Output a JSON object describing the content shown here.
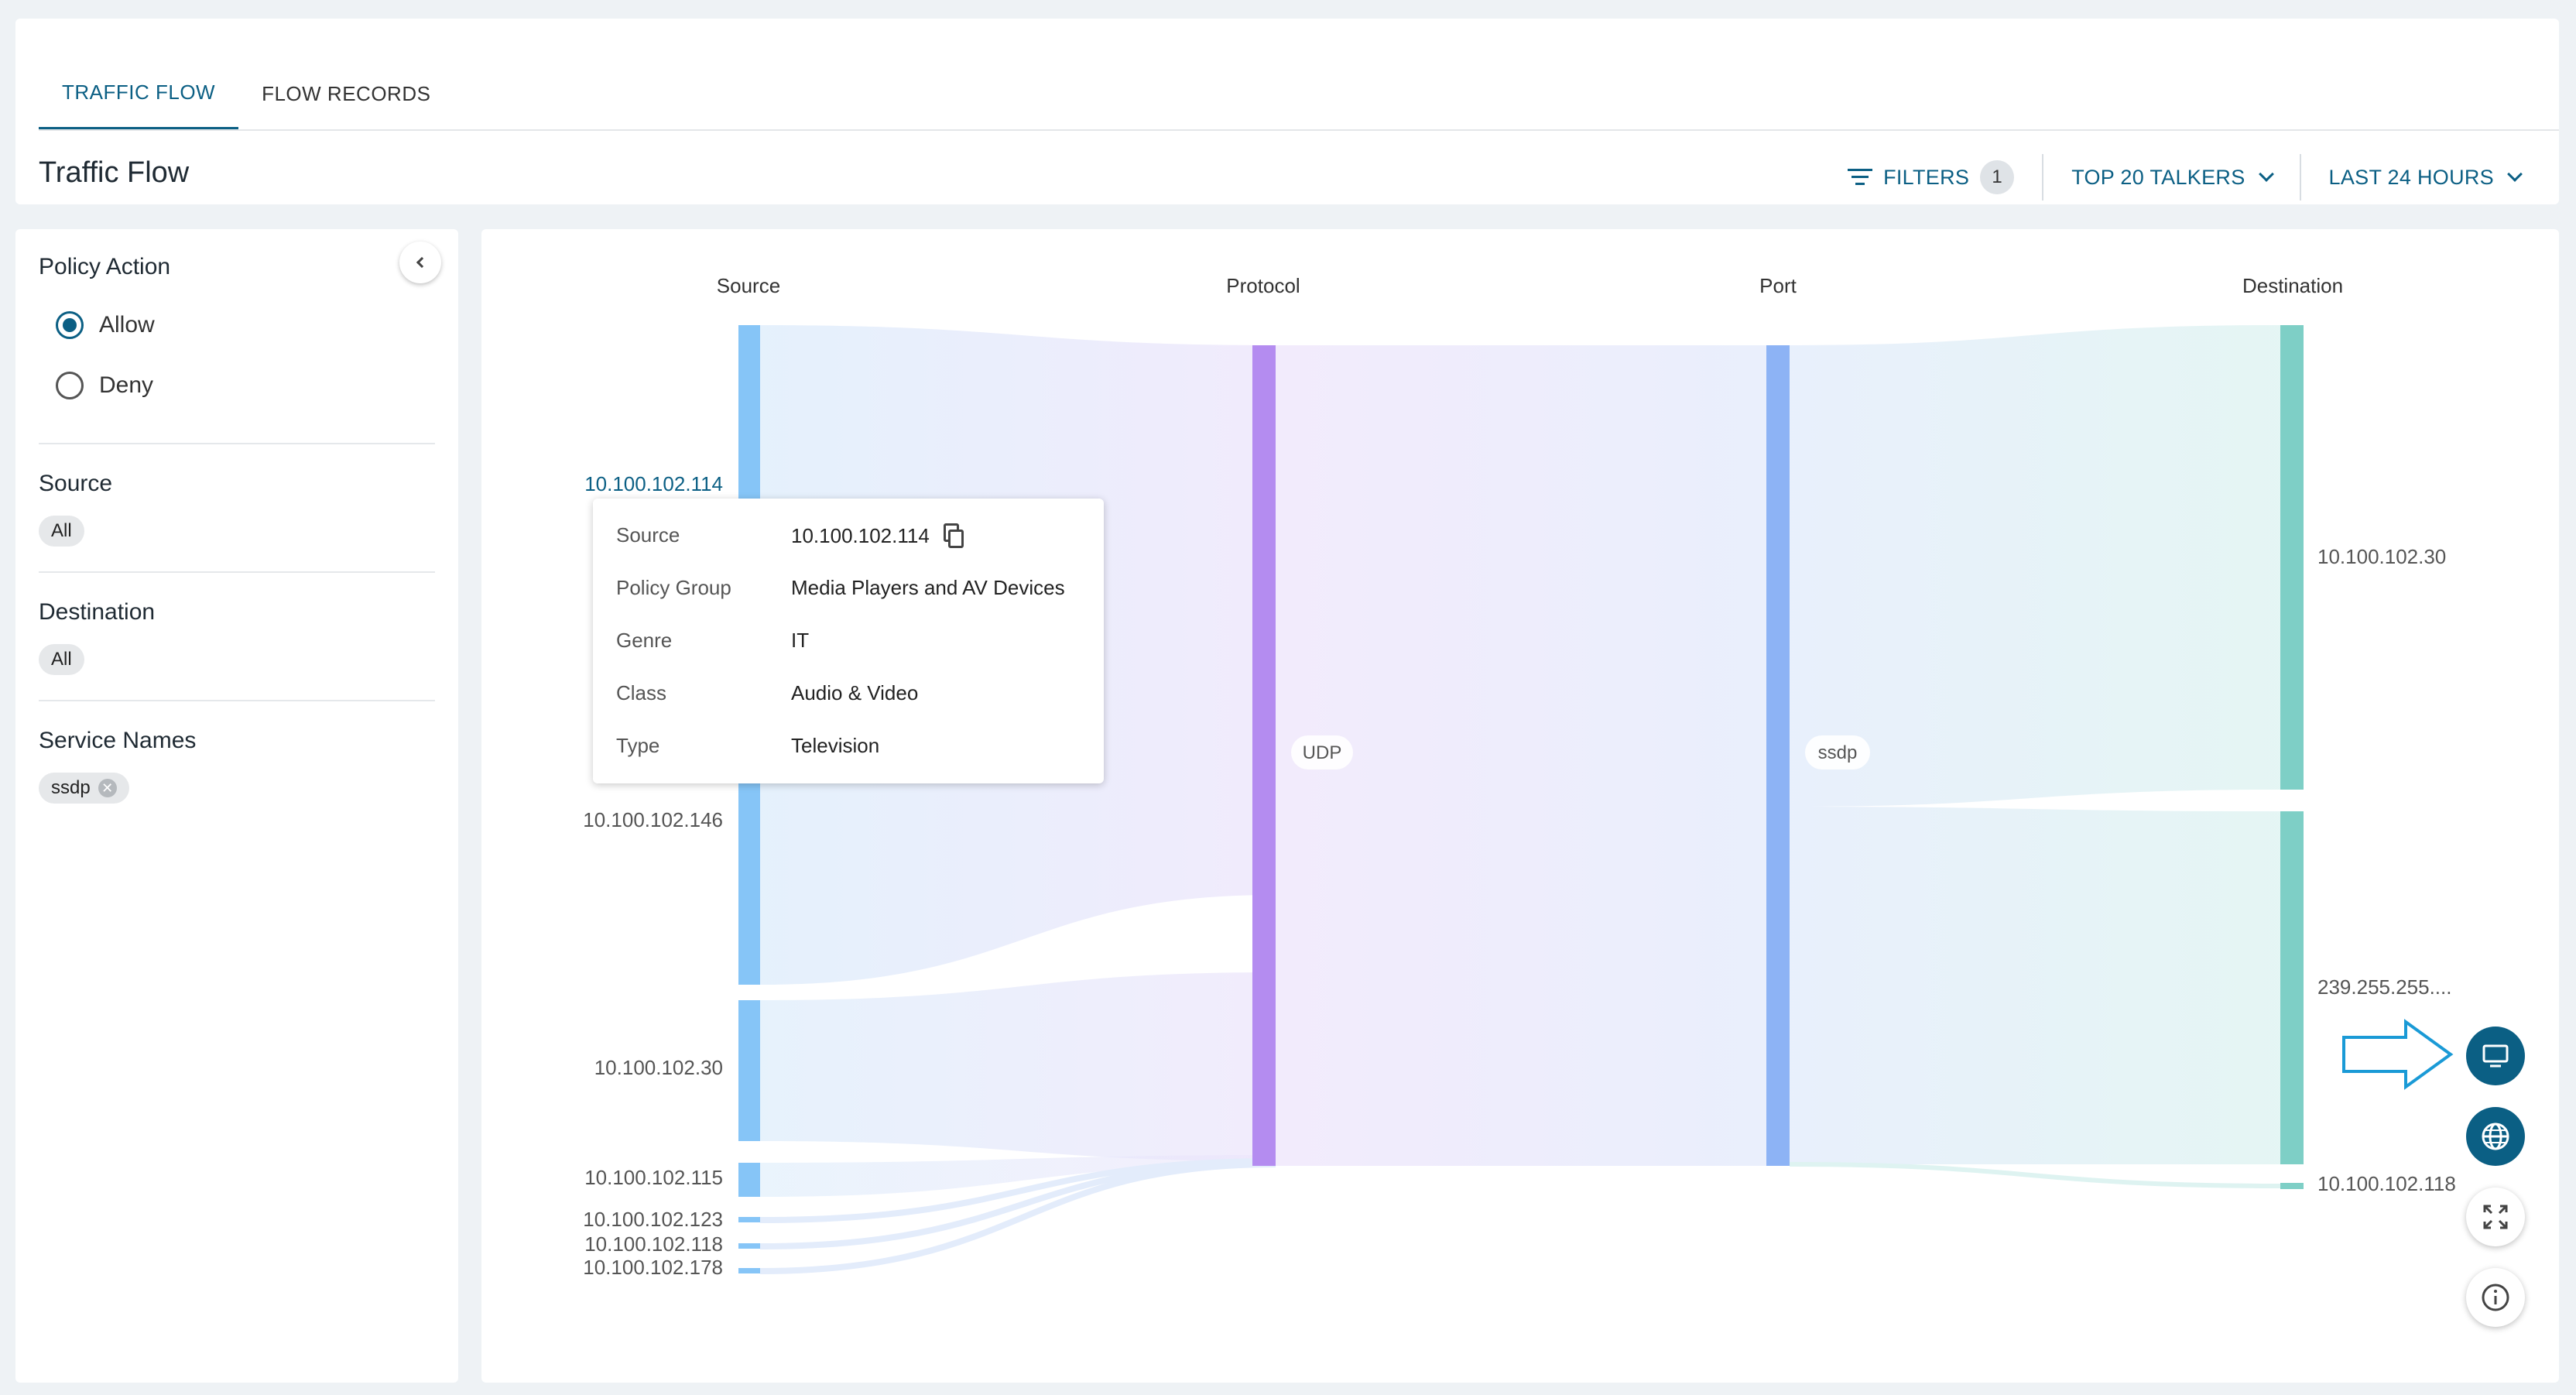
{
  "tabs": [
    {
      "label": "TRAFFIC FLOW",
      "active": true
    },
    {
      "label": "FLOW RECORDS",
      "active": false
    }
  ],
  "page_title": "Traffic Flow",
  "toolbar": {
    "filters_label": "FILTERS",
    "filters_count": "1",
    "talkers_label": "TOP 20 TALKERS",
    "time_label": "LAST 24 HOURS"
  },
  "sidebar": {
    "policy_action": {
      "heading": "Policy Action",
      "options": [
        {
          "label": "Allow",
          "checked": true
        },
        {
          "label": "Deny",
          "checked": false
        }
      ]
    },
    "source": {
      "heading": "Source",
      "chip": "All"
    },
    "destination": {
      "heading": "Destination",
      "chip": "All"
    },
    "service_names": {
      "heading": "Service Names",
      "chip": "ssdp"
    }
  },
  "sankey": {
    "columns": [
      "Source",
      "Protocol",
      "Port",
      "Destination"
    ],
    "sources": [
      "10.100.102.114",
      "10.100.102.146",
      "10.100.102.30",
      "10.100.102.115",
      "10.100.102.123",
      "10.100.102.118",
      "10.100.102.178"
    ],
    "protocol": "UDP",
    "port": "ssdp",
    "destinations": [
      "10.100.102.30",
      "239.255.255....",
      "10.100.102.118"
    ],
    "colors": {
      "source": "#86c5f7",
      "protocol": "#b48cf0",
      "port": "#8db3f5",
      "destination": "#7ecfc6",
      "highlight": "#0b5f84"
    }
  },
  "tooltip": {
    "rows": [
      {
        "key": "Source",
        "value": "10.100.102.114"
      },
      {
        "key": "Policy Group",
        "value": "Media Players and AV Devices"
      },
      {
        "key": "Genre",
        "value": "IT"
      },
      {
        "key": "Class",
        "value": "Audio & Video"
      },
      {
        "key": "Type",
        "value": "Television"
      }
    ]
  },
  "icons": [
    "filter-icon",
    "chevron-down-icon",
    "chevron-left-icon",
    "copy-icon",
    "monitor-icon",
    "globe-icon",
    "expand-icon",
    "info-icon",
    "arrow-right-icon"
  ]
}
